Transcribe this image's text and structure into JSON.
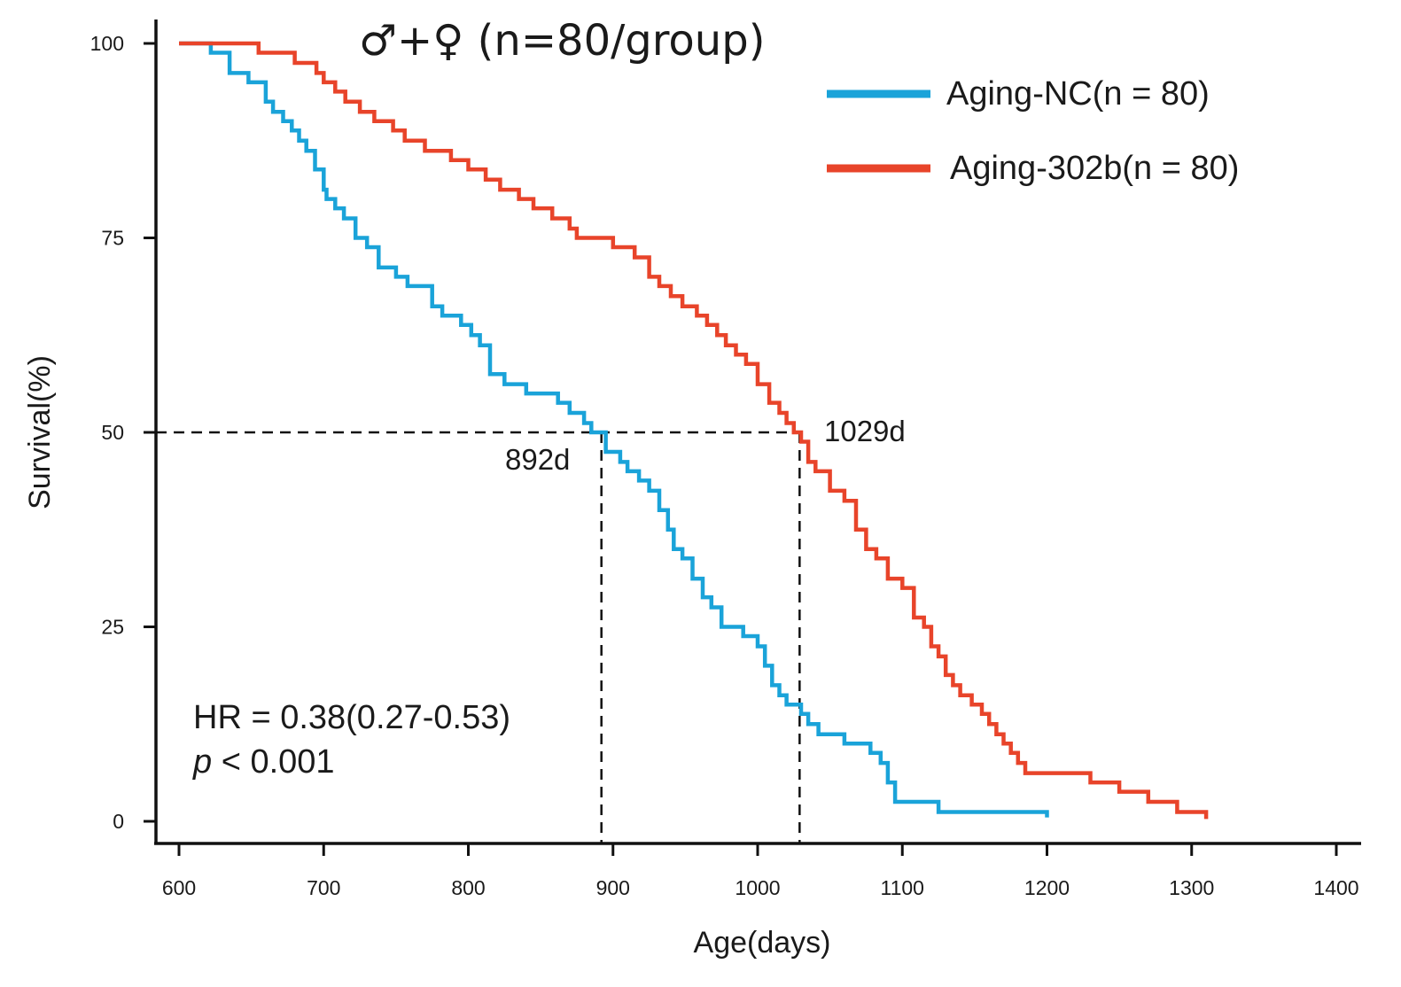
{
  "chart_data": {
    "type": "line",
    "title": "♂+♀ (n=80/group)",
    "xlabel": "Age(days)",
    "ylabel": "Survival(%)",
    "xlim": [
      600,
      1400
    ],
    "ylim": [
      0,
      100
    ],
    "x_ticks": [
      600,
      700,
      800,
      900,
      1000,
      1100,
      1200,
      1300,
      1400
    ],
    "y_ticks": [
      0,
      25,
      50,
      75,
      100
    ],
    "grid": false,
    "legend_position": "top-right",
    "series": [
      {
        "name": "Aging-NC(n = 80)",
        "color": "#1aa3d9",
        "step": true,
        "x": [
          600,
          622,
          635,
          648,
          660,
          665,
          672,
          678,
          683,
          688,
          694,
          700,
          702,
          708,
          714,
          722,
          730,
          738,
          750,
          758,
          775,
          782,
          795,
          802,
          808,
          815,
          825,
          840,
          862,
          870,
          880,
          885,
          895,
          905,
          910,
          918,
          925,
          932,
          938,
          942,
          948,
          955,
          962,
          968,
          975,
          982,
          990,
          1000,
          1005,
          1010,
          1015,
          1020,
          1030,
          1035,
          1042,
          1060,
          1078,
          1085,
          1090,
          1095,
          1125,
          1200
        ],
        "y": [
          100,
          98.8,
          96.2,
          95,
          92.5,
          91.2,
          90,
          88.8,
          87.5,
          86.2,
          83.8,
          81.2,
          80,
          78.8,
          77.5,
          75,
          73.8,
          71.2,
          70,
          68.8,
          66.2,
          65,
          63.8,
          62.5,
          61.2,
          57.5,
          56.2,
          55,
          53.8,
          52.5,
          51.2,
          50,
          47.5,
          46.2,
          45,
          43.8,
          42.5,
          40,
          37.5,
          35,
          33.8,
          31.2,
          28.8,
          27.5,
          25,
          25,
          23.8,
          22.5,
          20,
          17.5,
          16.2,
          15,
          13.8,
          12.5,
          11.2,
          10,
          8.8,
          7.5,
          5,
          2.5,
          1.2,
          0.5
        ]
      },
      {
        "name": "Aging-302b(n = 80)",
        "color": "#e8442a",
        "step": true,
        "x": [
          600,
          655,
          680,
          695,
          700,
          708,
          715,
          725,
          735,
          748,
          756,
          770,
          788,
          800,
          812,
          822,
          835,
          845,
          858,
          870,
          875,
          900,
          915,
          925,
          932,
          940,
          948,
          958,
          965,
          972,
          978,
          985,
          992,
          1000,
          1008,
          1015,
          1020,
          1025,
          1030,
          1035,
          1040,
          1050,
          1060,
          1068,
          1075,
          1082,
          1090,
          1100,
          1108,
          1115,
          1120,
          1125,
          1130,
          1135,
          1140,
          1148,
          1155,
          1160,
          1165,
          1170,
          1175,
          1180,
          1185,
          1195,
          1230,
          1250,
          1270,
          1290,
          1310
        ],
        "y": [
          100,
          98.8,
          97.5,
          96.2,
          95,
          93.8,
          92.5,
          91.2,
          90,
          88.8,
          87.5,
          86.2,
          85,
          83.8,
          82.5,
          81.2,
          80,
          78.8,
          77.5,
          76.2,
          75,
          73.8,
          72.5,
          70,
          68.8,
          67.5,
          66.2,
          65,
          63.8,
          62.5,
          61.2,
          60,
          58.8,
          56.2,
          53.8,
          52.5,
          51.2,
          50,
          48.8,
          46.2,
          45,
          42.5,
          41.2,
          37.5,
          35,
          33.8,
          31.2,
          30,
          26.2,
          25,
          22.5,
          21.2,
          18.8,
          17.5,
          16.2,
          15,
          13.8,
          12.5,
          11.2,
          10,
          8.8,
          7.5,
          6.2,
          6.2,
          5,
          3.8,
          2.5,
          1.2,
          0.3
        ]
      }
    ],
    "reference_lines": {
      "y": 50,
      "medians": [
        {
          "x": 892,
          "label": "892d"
        },
        {
          "x": 1029,
          "label": "1029d"
        }
      ]
    },
    "annotations": {
      "hr": "HR = 0.38(0.27-0.53)",
      "p_italic": "p",
      "p_rest": " < 0.001"
    }
  }
}
